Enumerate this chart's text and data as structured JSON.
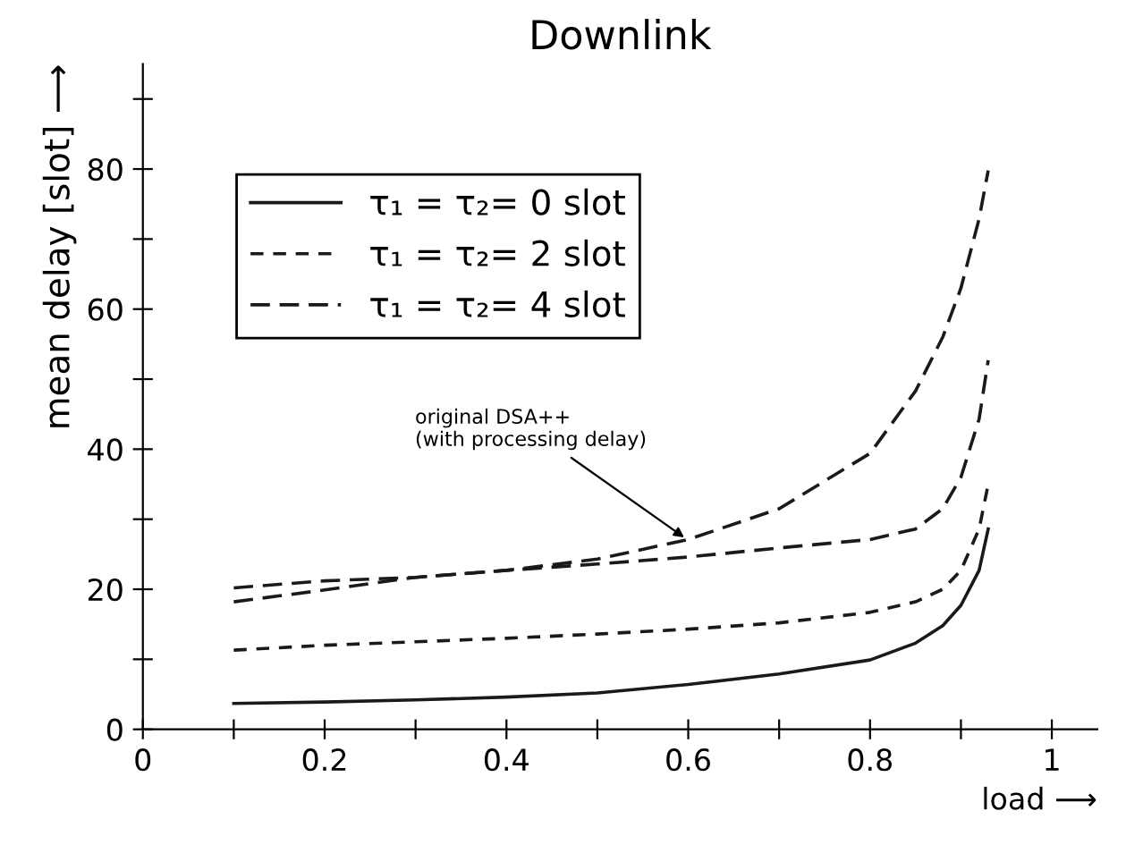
{
  "chart_data": {
    "type": "line",
    "title": "Downlink",
    "xlabel": "load ⟶",
    "ylabel": "mean delay [slot] ⟶",
    "x": [
      0.1,
      0.2,
      0.3,
      0.4,
      0.5,
      0.6,
      0.7,
      0.8,
      0.85,
      0.88,
      0.9,
      0.92,
      0.93
    ],
    "series": [
      {
        "name": "τ₁ = τ₂= 0 slot",
        "color": "#1a1a1a",
        "line_style": "solid",
        "values": [
          3.7,
          3.9,
          4.2,
          4.6,
          5.2,
          6.4,
          7.9,
          9.9,
          12.3,
          14.8,
          17.7,
          22.7,
          28.6
        ]
      },
      {
        "name": "τ₁ = τ₂= 2 slot",
        "color": "#1a1a1a",
        "line_style": "dashed",
        "values": [
          11.3,
          12.0,
          12.5,
          13.0,
          13.6,
          14.3,
          15.2,
          16.7,
          18.2,
          20.0,
          22.7,
          28.6,
          35.0
        ]
      },
      {
        "name": "τ₁ = τ₂= 4 slot",
        "color": "#1a1a1a",
        "line_style": "longdash",
        "values": [
          18.2,
          19.9,
          21.7,
          22.7,
          23.6,
          24.6,
          25.9,
          27.1,
          28.6,
          31.5,
          36.0,
          44.3,
          52.7
        ]
      },
      {
        "color": "#1a1a1a",
        "line_style": "longdash",
        "values": [
          20.2,
          21.2,
          21.7,
          22.7,
          24.3,
          27.1,
          31.5,
          39.4,
          48.3,
          56.0,
          63.0,
          72.9,
          79.8
        ]
      }
    ],
    "annotations": [
      {
        "text": "original DSA++\n(with processing delay)",
        "x": 0.6,
        "y": 27
      }
    ],
    "xlim": [
      0,
      1.05
    ],
    "ylim": [
      0,
      95
    ],
    "xticks": [
      0,
      {
        "value": 0.1,
        "label": null
      },
      0.2,
      {
        "value": 0.3,
        "label": null
      },
      0.4,
      {
        "value": 0.5,
        "label": null
      },
      0.6,
      {
        "value": 0.7,
        "label": null
      },
      0.8,
      {
        "value": 0.9,
        "label": null
      },
      1
    ],
    "yticks": [
      0,
      {
        "value": 10,
        "label": null
      },
      20,
      {
        "value": 30,
        "label": null
      },
      40,
      {
        "value": 50,
        "label": null
      },
      60,
      {
        "value": 70,
        "label": null
      },
      80,
      {
        "value": 90,
        "label": null
      }
    ],
    "grid": false,
    "legend": "top left",
    "marker": "none"
  }
}
